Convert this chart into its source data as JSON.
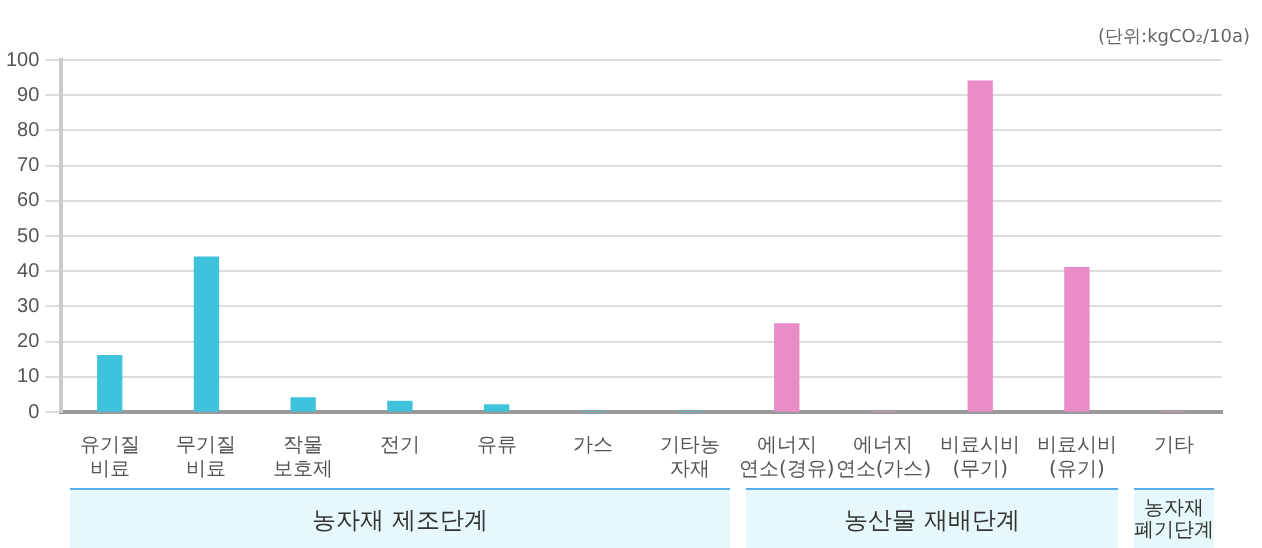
{
  "chart_data": {
    "type": "bar",
    "ylabel": "(단위:kgCO₂/10a)",
    "categories": [
      "유기질\n비료",
      "무기질\n비료",
      "작물\n보호제",
      "전기",
      "유류",
      "가스",
      "기타농\n자재",
      "에너지\n연소(경유)",
      "에너지\n연소(가스)",
      "비료시비\n(무기)",
      "비료시비\n(유기)",
      "기타"
    ],
    "values": [
      16,
      44,
      4,
      3,
      2,
      0,
      0,
      25,
      0,
      94,
      41,
      0
    ],
    "colors": [
      "#3fc3dc",
      "#3fc3dc",
      "#3fc3dc",
      "#3fc3dc",
      "#3fc3dc",
      "#3fc3dc",
      "#3fc3dc",
      "#e98cc8",
      "#e98cc8",
      "#e98cc8",
      "#e98cc8",
      "#e98cc8"
    ],
    "ylim": [
      0,
      100
    ],
    "yticks": [
      0,
      10,
      20,
      30,
      40,
      50,
      60,
      70,
      80,
      90,
      100
    ],
    "grid": "y",
    "annotations": [
      "농자재 제조단계",
      "농산물 재배단계",
      "농자재\n폐기단계"
    ]
  }
}
